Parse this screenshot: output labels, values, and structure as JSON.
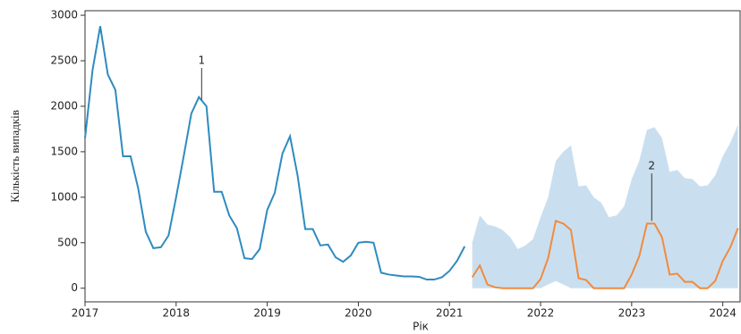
{
  "chart_data": {
    "type": "line",
    "xlabel": "Рік",
    "ylabel": "Кількість випадків",
    "xlim": [
      2017,
      2024.19
    ],
    "ylim": [
      -150,
      3050
    ],
    "xticks": [
      2017,
      2018,
      2019,
      2020,
      2021,
      2022,
      2023,
      2024
    ],
    "yticks": [
      0,
      500,
      1000,
      1500,
      2000,
      2500,
      3000
    ],
    "band_color": "#c9dff0",
    "series": [
      {
        "color": "#2f8bbf",
        "x": [
          2017,
          2017.083,
          2017.167,
          2017.25,
          2017.333,
          2017.417,
          2017.5,
          2017.583,
          2017.667,
          2017.75,
          2017.833,
          2017.917,
          2018,
          2018.083,
          2018.167,
          2018.25,
          2018.333,
          2018.417,
          2018.5,
          2018.583,
          2018.667,
          2018.75,
          2018.833,
          2018.917,
          2019,
          2019.083,
          2019.167,
          2019.25,
          2019.333,
          2019.417,
          2019.5,
          2019.583,
          2019.667,
          2019.75,
          2019.833,
          2019.917,
          2020,
          2020.083,
          2020.167,
          2020.25,
          2020.333,
          2020.417,
          2020.5,
          2020.583,
          2020.667,
          2020.75,
          2020.833,
          2020.917,
          2021,
          2021.083,
          2021.167
        ],
        "values": [
          1650,
          2400,
          2880,
          2350,
          2180,
          1450,
          1450,
          1100,
          620,
          440,
          450,
          580,
          1000,
          1450,
          1920,
          2100,
          2000,
          1060,
          1060,
          800,
          660,
          330,
          320,
          430,
          860,
          1050,
          1480,
          1670,
          1240,
          650,
          650,
          470,
          480,
          340,
          290,
          360,
          500,
          510,
          500,
          170,
          150,
          140,
          130,
          130,
          125,
          95,
          95,
          120,
          190,
          300,
          460
        ]
      },
      {
        "color": "#f28a3c",
        "x": [
          2021.25,
          2021.333,
          2021.417,
          2021.5,
          2021.583,
          2021.667,
          2021.75,
          2021.833,
          2021.917,
          2022,
          2022.083,
          2022.167,
          2022.25,
          2022.333,
          2022.417,
          2022.5,
          2022.583,
          2022.667,
          2022.75,
          2022.833,
          2022.917,
          2023,
          2023.083,
          2023.167,
          2023.25,
          2023.333,
          2023.417,
          2023.5,
          2023.583,
          2023.667,
          2023.75,
          2023.833,
          2023.917,
          2024,
          2024.083,
          2024.167
        ],
        "values": [
          120,
          250,
          40,
          10,
          0,
          0,
          0,
          0,
          0,
          100,
          330,
          740,
          710,
          640,
          110,
          90,
          0,
          0,
          0,
          0,
          0,
          150,
          350,
          710,
          710,
          560,
          150,
          160,
          70,
          70,
          0,
          0,
          80,
          300,
          450,
          660
        ],
        "upper": [
          500,
          800,
          700,
          680,
          640,
          560,
          430,
          470,
          540,
          780,
          1000,
          1400,
          1500,
          1570,
          1120,
          1130,
          1000,
          940,
          780,
          800,
          900,
          1200,
          1400,
          1740,
          1770,
          1650,
          1280,
          1300,
          1210,
          1200,
          1120,
          1130,
          1240,
          1450,
          1600,
          1800
        ],
        "lower": [
          0,
          0,
          0,
          0,
          0,
          0,
          0,
          0,
          0,
          0,
          40,
          80,
          40,
          0,
          0,
          0,
          0,
          0,
          0,
          0,
          0,
          0,
          0,
          0,
          0,
          0,
          0,
          0,
          0,
          0,
          0,
          0,
          0,
          0,
          0,
          0
        ]
      }
    ],
    "annotations": [
      {
        "text": "1",
        "x": 2018.28,
        "y": 2500,
        "target": 2070
      },
      {
        "text": "2",
        "x": 2023.22,
        "y": 1340,
        "target": 740
      }
    ]
  }
}
